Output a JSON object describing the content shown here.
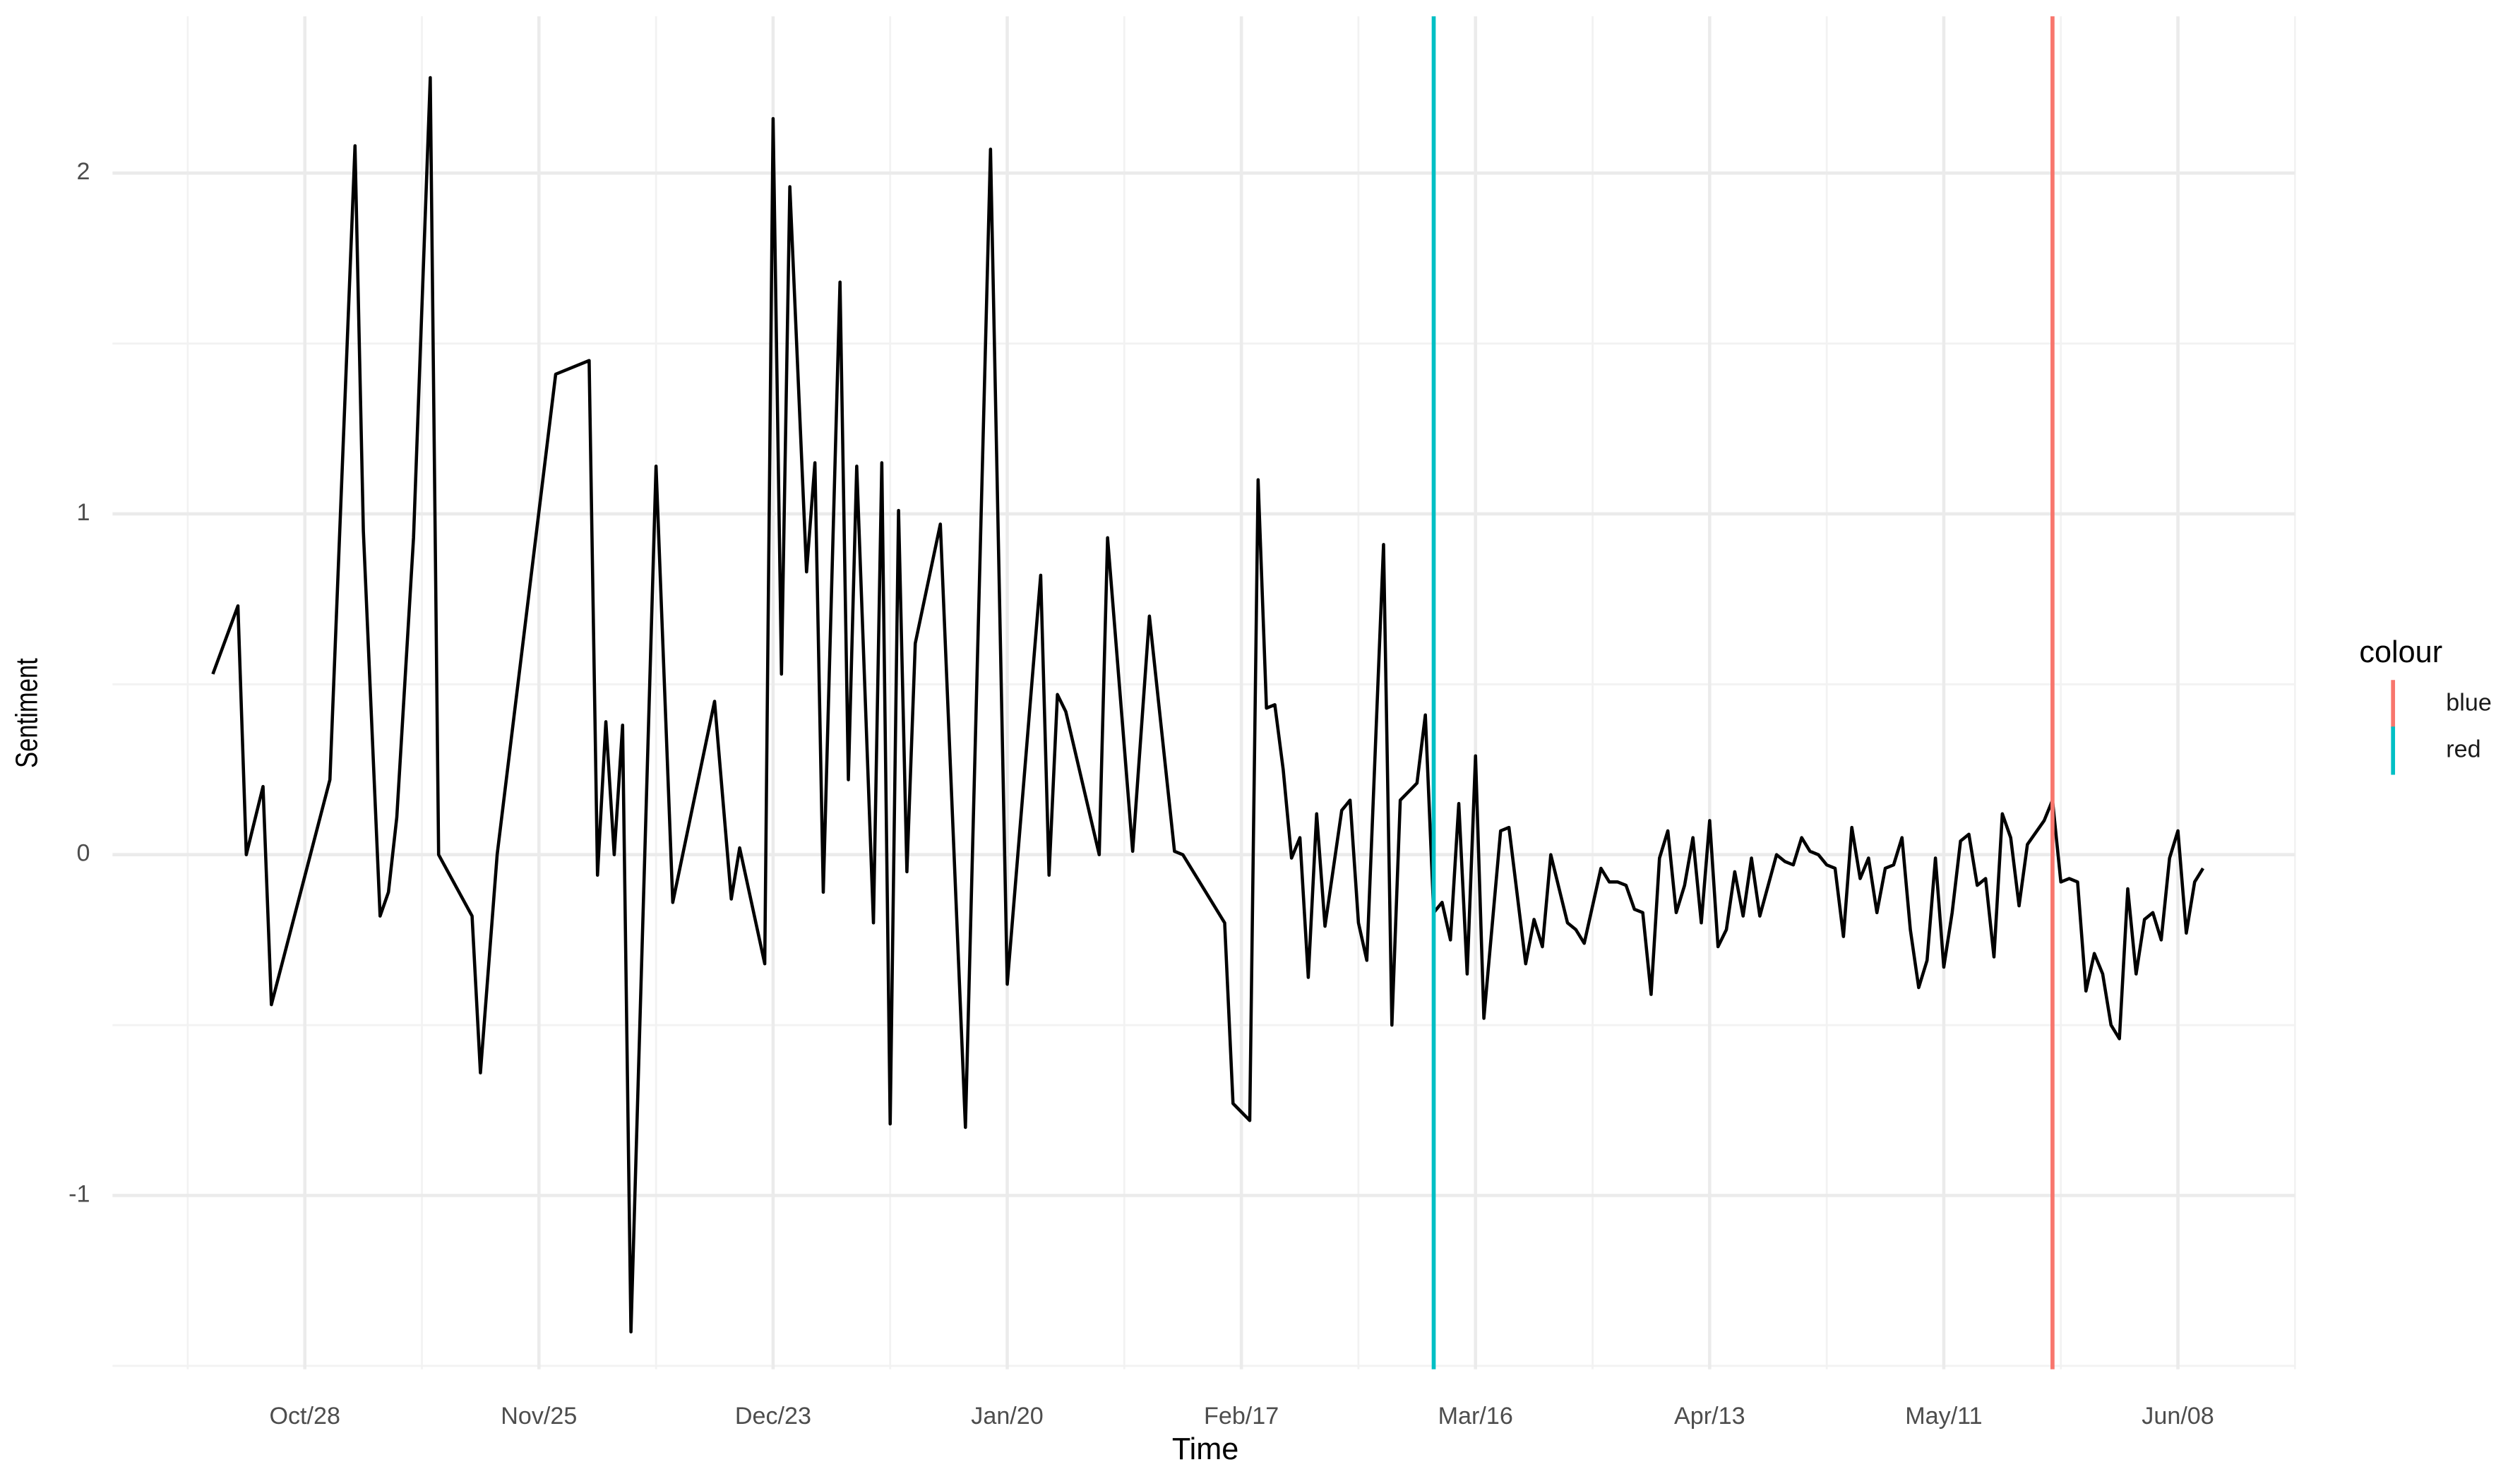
{
  "chart_data": {
    "type": "line",
    "x_label": "Time",
    "y_label": "Sentiment",
    "color": "#000000",
    "x": [
      "Oct/17",
      "Oct/20",
      "Oct/21",
      "Oct/23",
      "Oct/24",
      "Oct/31",
      "Nov/03",
      "Nov/04",
      "Nov/06",
      "Nov/07",
      "Nov/08",
      "Nov/10",
      "Nov/12",
      "Nov/13",
      "Nov/17",
      "Nov/18",
      "Nov/20",
      "Nov/27",
      "Dec/01",
      "Dec/02",
      "Dec/03",
      "Dec/04",
      "Dec/05",
      "Dec/06",
      "Dec/09",
      "Dec/11",
      "Dec/16",
      "Dec/18",
      "Dec/19",
      "Dec/22",
      "Dec/23",
      "Dec/24",
      "Dec/25",
      "Dec/27",
      "Dec/28",
      "Dec/29",
      "Dec/31",
      "Jan/01",
      "Jan/02",
      "Jan/04",
      "Jan/05",
      "Jan/06",
      "Jan/07",
      "Jan/08",
      "Jan/09",
      "Jan/12",
      "Jan/15",
      "Jan/18",
      "Jan/20",
      "Jan/24",
      "Jan/25",
      "Jan/26",
      "Jan/27",
      "Jan/31",
      "Feb/01",
      "Feb/04",
      "Feb/06",
      "Feb/09",
      "Feb/10",
      "Feb/15",
      "Feb/16",
      "Feb/18",
      "Feb/19",
      "Feb/20",
      "Feb/21",
      "Feb/22",
      "Feb/23",
      "Feb/24",
      "Feb/25",
      "Feb/26",
      "Feb/27",
      "Feb/29",
      "Mar/01",
      "Mar/02",
      "Mar/03",
      "Mar/05",
      "Mar/06",
      "Mar/07",
      "Mar/09",
      "Mar/10",
      "Mar/11",
      "Mar/12",
      "Mar/13",
      "Mar/14",
      "Mar/15",
      "Mar/16",
      "Mar/17",
      "Mar/19",
      "Mar/20",
      "Mar/22",
      "Mar/23",
      "Mar/24",
      "Mar/25",
      "Mar/27",
      "Mar/28",
      "Mar/29",
      "Mar/31",
      "Apr/01",
      "Apr/02",
      "Apr/03",
      "Apr/04",
      "Apr/05",
      "Apr/06",
      "Apr/07",
      "Apr/08",
      "Apr/09",
      "Apr/10",
      "Apr/11",
      "Apr/12",
      "Apr/13",
      "Apr/14",
      "Apr/15",
      "Apr/16",
      "Apr/17",
      "Apr/18",
      "Apr/19",
      "Apr/21",
      "Apr/22",
      "Apr/23",
      "Apr/24",
      "Apr/25",
      "Apr/26",
      "Apr/27",
      "Apr/28",
      "Apr/29",
      "Apr/30",
      "May/01",
      "May/02",
      "May/03",
      "May/04",
      "May/05",
      "May/06",
      "May/07",
      "May/08",
      "May/09",
      "May/10",
      "May/11",
      "May/12",
      "May/13",
      "May/14",
      "May/15",
      "May/16",
      "May/17",
      "May/18",
      "May/19",
      "May/20",
      "May/21",
      "May/23",
      "May/24",
      "May/25",
      "May/26",
      "May/27",
      "May/28",
      "May/29",
      "May/30",
      "May/31",
      "Jun/01",
      "Jun/02",
      "Jun/03",
      "Jun/04",
      "Jun/05",
      "Jun/06",
      "Jun/07",
      "Jun/08",
      "Jun/09",
      "Jun/10",
      "Jun/11"
    ],
    "values": [
      0.53,
      0.73,
      0.0,
      0.2,
      -0.44,
      0.22,
      2.08,
      0.95,
      -0.18,
      -0.11,
      0.11,
      0.93,
      2.28,
      0.0,
      -0.18,
      -0.64,
      0.0,
      1.41,
      1.45,
      -0.06,
      0.39,
      0.0,
      0.38,
      -1.4,
      1.14,
      -0.14,
      0.45,
      -0.13,
      0.02,
      -0.32,
      2.16,
      0.53,
      1.96,
      0.83,
      1.15,
      -0.11,
      1.68,
      0.22,
      1.14,
      -0.2,
      1.15,
      -0.79,
      1.01,
      -0.05,
      0.62,
      0.97,
      -0.8,
      2.07,
      -0.38,
      0.82,
      -0.06,
      0.47,
      0.42,
      0.0,
      0.93,
      0.01,
      0.7,
      0.01,
      0.0,
      -0.2,
      -0.73,
      -0.78,
      1.1,
      0.43,
      0.44,
      0.25,
      -0.01,
      0.05,
      -0.36,
      0.12,
      -0.21,
      0.13,
      0.16,
      -0.2,
      -0.31,
      0.91,
      -0.5,
      0.16,
      0.21,
      0.41,
      -0.17,
      -0.14,
      -0.25,
      0.15,
      -0.35,
      0.29,
      -0.48,
      0.07,
      0.08,
      -0.32,
      -0.19,
      -0.27,
      0.0,
      -0.2,
      -0.22,
      -0.26,
      -0.04,
      -0.08,
      -0.08,
      -0.09,
      -0.16,
      -0.17,
      -0.41,
      -0.01,
      0.07,
      -0.17,
      -0.09,
      0.05,
      -0.2,
      0.1,
      -0.27,
      -0.22,
      -0.05,
      -0.18,
      -0.01,
      -0.18,
      0.0,
      -0.02,
      -0.03,
      0.05,
      0.01,
      0.0,
      -0.03,
      -0.04,
      -0.24,
      0.08,
      -0.07,
      -0.01,
      -0.17,
      -0.04,
      -0.03,
      0.05,
      -0.22,
      -0.39,
      -0.31,
      -0.01,
      -0.33,
      -0.17,
      0.04,
      0.06,
      -0.09,
      -0.07,
      -0.3,
      0.12,
      0.05,
      -0.15,
      0.03,
      0.1,
      0.16,
      -0.08,
      -0.07,
      -0.08,
      -0.4,
      -0.29,
      -0.35,
      -0.5,
      -0.54,
      -0.1,
      -0.35,
      -0.19,
      -0.17,
      -0.25,
      -0.01,
      0.07,
      -0.23,
      -0.08,
      -0.04
    ],
    "vlines": [
      {
        "name": "blue",
        "color": "#f8766d",
        "x": "May/24"
      },
      {
        "name": "red",
        "color": "#00bfc4",
        "x": "Mar/11"
      }
    ],
    "legend_title": "colour",
    "legend": "right",
    "xlim": [
      "Oct/05",
      "Jun/22"
    ],
    "xticks": [
      "Oct/28",
      "Nov/25",
      "Dec/23",
      "Jan/20",
      "Feb/17",
      "Mar/16",
      "Apr/13",
      "May/11",
      "Jun/08"
    ],
    "ylim": [
      -1.51,
      2.46
    ],
    "yticks": [
      -1,
      0,
      1,
      2
    ],
    "grid": true
  }
}
